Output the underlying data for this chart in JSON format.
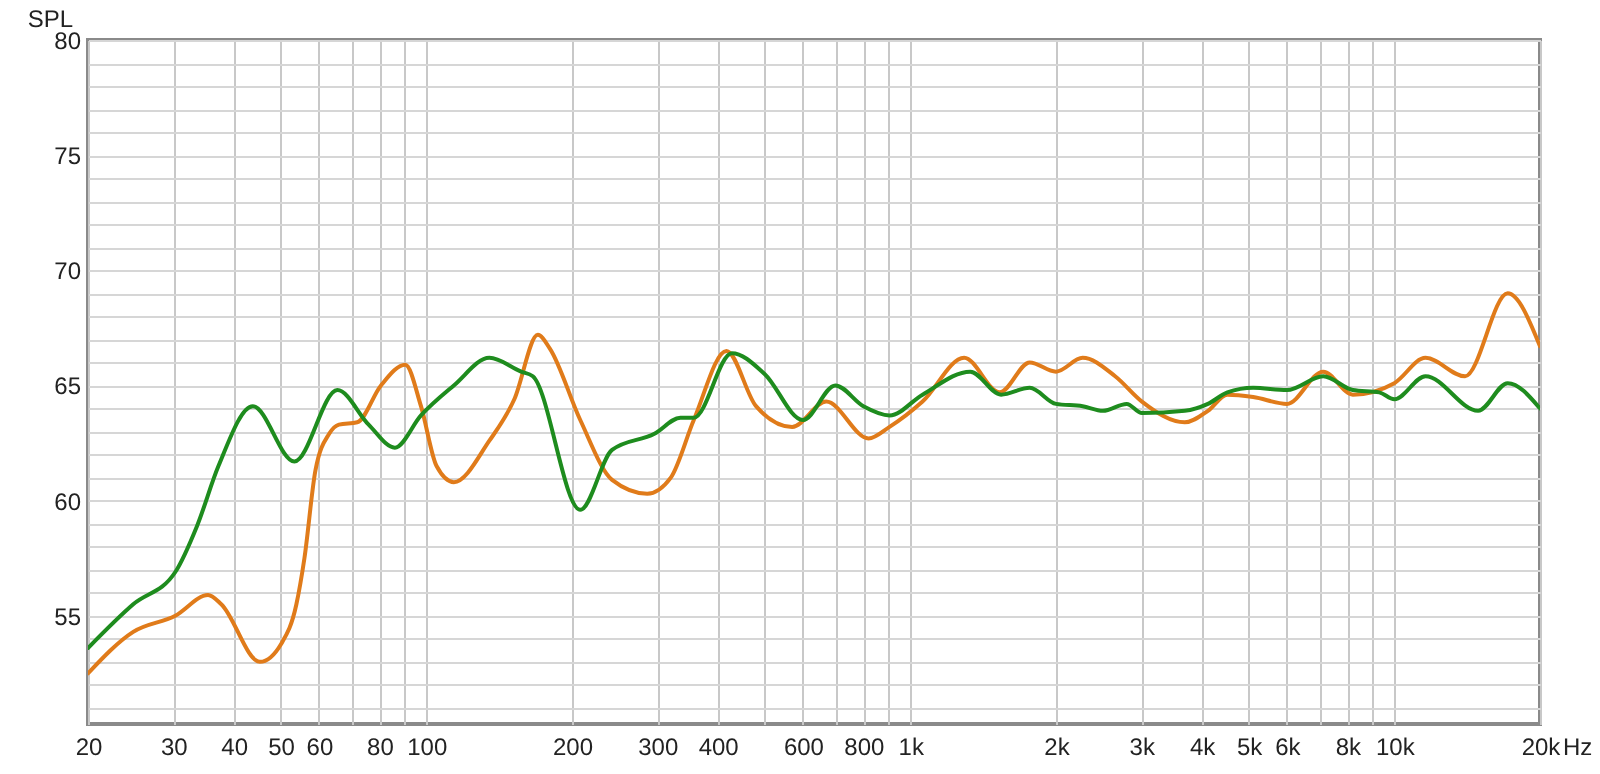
{
  "chart_data": {
    "type": "line",
    "ylabel": "SPL",
    "log": "x",
    "grid": true,
    "line_style": "solid",
    "xlim": [
      20,
      20000
    ],
    "ylim": [
      50.3,
      80
    ],
    "xticks": [
      20,
      30,
      40,
      50,
      60,
      {
        "value": 70,
        "label": null
      },
      80,
      {
        "value": 90,
        "label": null
      },
      100,
      200,
      300,
      400,
      {
        "value": 500,
        "label": null
      },
      600,
      {
        "value": 700,
        "label": null
      },
      800,
      {
        "value": 900,
        "label": null
      },
      {
        "value": 1000,
        "label": "1k"
      },
      {
        "value": 2000,
        "label": "2k"
      },
      {
        "value": 3000,
        "label": "3k"
      },
      {
        "value": 4000,
        "label": "4k"
      },
      {
        "value": 5000,
        "label": "5k"
      },
      {
        "value": 6000,
        "label": "6k"
      },
      {
        "value": 7000,
        "label": null
      },
      {
        "value": 8000,
        "label": "8k"
      },
      {
        "value": 9000,
        "label": null
      },
      {
        "value": 10000,
        "label": "10k"
      },
      {
        "value": 20000,
        "label": "20k"
      }
    ],
    "xlabel": "Hz",
    "yticks": [
      {
        "value": 51,
        "label": null
      },
      {
        "value": 52,
        "label": null
      },
      {
        "value": 53,
        "label": null
      },
      {
        "value": 54,
        "label": null
      },
      55,
      {
        "value": 56,
        "label": null
      },
      {
        "value": 57,
        "label": null
      },
      {
        "value": 58,
        "label": null
      },
      {
        "value": 59,
        "label": null
      },
      60,
      {
        "value": 61,
        "label": null
      },
      {
        "value": 62,
        "label": null
      },
      {
        "value": 63,
        "label": null
      },
      {
        "value": 64,
        "label": null
      },
      65,
      {
        "value": 66,
        "label": null
      },
      {
        "value": 67,
        "label": null
      },
      {
        "value": 68,
        "label": null
      },
      {
        "value": 69,
        "label": null
      },
      70,
      {
        "value": 71,
        "label": null
      },
      {
        "value": 72,
        "label": null
      },
      {
        "value": 73,
        "label": null
      },
      {
        "value": 74,
        "label": null
      },
      75,
      {
        "value": 76,
        "label": null
      },
      {
        "value": 77,
        "label": null
      },
      {
        "value": 78,
        "label": null
      },
      {
        "value": 79,
        "label": null
      },
      80
    ],
    "series": [
      {
        "color": "#e07b1a",
        "x": [
          20,
          24.8,
          30.3,
          35.4,
          37.7,
          45.3,
          50.2,
          53.9,
          56,
          59,
          63,
          66,
          72,
          80.6,
          90.5,
          97.5,
          105,
          114,
          135,
          152,
          170,
          180,
          208,
          242,
          286,
          320,
          357,
          417,
          480,
          570,
          670,
          820,
          906,
          1060,
          1292,
          1530,
          1765,
          2000,
          2270,
          2650,
          3010,
          3690,
          4120,
          4520,
          5110,
          6000,
          7130,
          8210,
          10000,
          11600,
          14000,
          17150,
          20000
        ],
        "values": [
          52.5,
          54.3,
          55.0,
          55.9,
          55.5,
          53.0,
          53.8,
          55.5,
          57.5,
          61.3,
          62.9,
          63.3,
          63.4,
          65.0,
          65.9,
          64.1,
          61.5,
          60.8,
          62.6,
          64.4,
          67.2,
          66.6,
          63.5,
          60.9,
          60.3,
          61.0,
          63.5,
          66.5,
          64.1,
          63.2,
          64.3,
          62.7,
          63.2,
          64.3,
          66.2,
          64.7,
          66.0,
          65.6,
          66.2,
          65.4,
          64.3,
          63.4,
          63.9,
          64.6,
          64.5,
          64.2,
          65.6,
          64.6,
          65.1,
          66.2,
          65.4,
          69.0,
          66.7
        ]
      },
      {
        "color": "#1e8c1e",
        "x": [
          20,
          24.8,
          30.3,
          33.6,
          37.2,
          43.8,
          53.4,
          65.5,
          76,
          86.1,
          97.5,
          114,
          135,
          157,
          166,
          208,
          242,
          296,
          335,
          357,
          428,
          500,
          600,
          700,
          800,
          906,
          1060,
          1330,
          1540,
          1765,
          2000,
          2270,
          2500,
          2800,
          3010,
          3690,
          4120,
          4520,
          5110,
          6000,
          7130,
          8210,
          9310,
          10000,
          11600,
          14900,
          17150,
          20000
        ],
        "values": [
          53.6,
          55.5,
          56.9,
          58.9,
          61.5,
          64.1,
          61.7,
          64.8,
          63.3,
          62.3,
          63.7,
          65.0,
          66.2,
          65.6,
          65.4,
          59.6,
          62.2,
          62.9,
          63.6,
          63.6,
          66.4,
          65.5,
          63.5,
          65.0,
          64.1,
          63.7,
          64.6,
          65.6,
          64.6,
          64.9,
          64.2,
          64.1,
          63.9,
          64.2,
          63.8,
          63.9,
          64.2,
          64.7,
          64.9,
          64.8,
          65.4,
          64.8,
          64.7,
          64.4,
          65.4,
          63.9,
          65.1,
          64.0
        ]
      }
    ]
  }
}
